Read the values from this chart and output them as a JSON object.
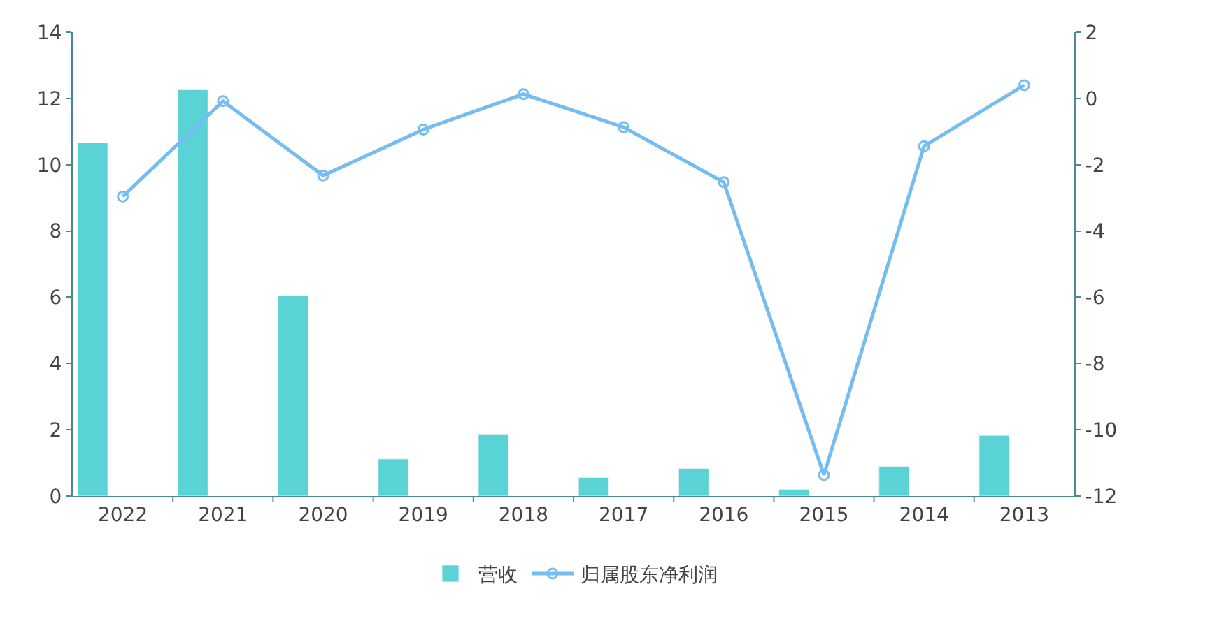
{
  "chart_data": {
    "type": "bar",
    "categories": [
      "2022",
      "2021",
      "2020",
      "2019",
      "2018",
      "2017",
      "2016",
      "2015",
      "2014",
      "2013"
    ],
    "series": [
      {
        "name": "营收",
        "color": "#5ad3d7",
        "values": [
          10.66,
          12.26,
          6.04,
          1.12,
          1.87,
          0.56,
          0.83,
          0.2,
          0.89,
          1.83
        ]
      },
      {
        "name": "归属股东净利润",
        "type": "line",
        "axis": "y2",
        "color": "#75bdf0",
        "values": [
          -2.96,
          -0.08,
          -2.33,
          -0.94,
          0.13,
          -0.87,
          -2.53,
          -11.36,
          -1.44,
          0.4
        ]
      }
    ],
    "ylim": [
      0,
      14
    ],
    "yticks": [
      0,
      2,
      4,
      6,
      8,
      10,
      12,
      14
    ],
    "y2lim": [
      -12,
      2
    ],
    "y2ticks": [
      -12,
      -10,
      -8,
      -6,
      -4,
      -2,
      0,
      2
    ],
    "legend": "bottom",
    "marker": "circle"
  }
}
